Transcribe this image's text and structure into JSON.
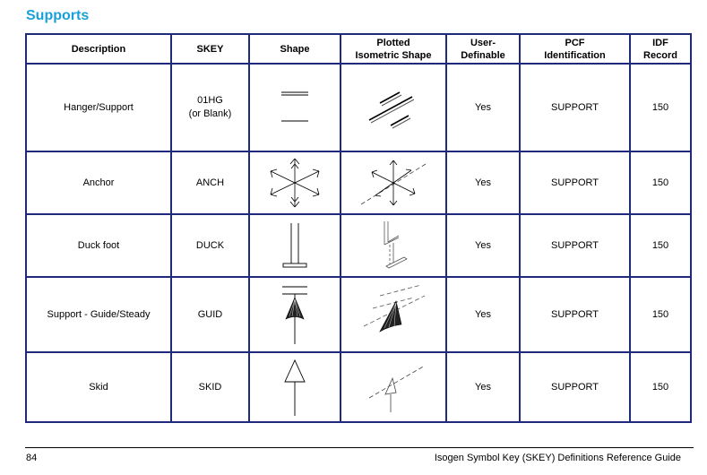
{
  "section_title": "Supports",
  "columns": [
    {
      "line1": "Description",
      "line2": ""
    },
    {
      "line1": "SKEY",
      "line2": ""
    },
    {
      "line1": "Shape",
      "line2": ""
    },
    {
      "line1": "Plotted",
      "line2": "Isometric Shape"
    },
    {
      "line1": "User-",
      "line2": "Definable"
    },
    {
      "line1": "PCF",
      "line2": "Identification"
    },
    {
      "line1": "IDF",
      "line2": "Record"
    }
  ],
  "rows": [
    {
      "description": "Hanger/Support",
      "skey": "01HG",
      "skey_note": "(or Blank)",
      "shape_icon": "hanger-support-icon",
      "user_definable": "Yes",
      "pcf_identification": "SUPPORT",
      "idf_record": "150"
    },
    {
      "description": "Anchor",
      "skey": "ANCH",
      "skey_note": "",
      "shape_icon": "anchor-icon",
      "user_definable": "Yes",
      "pcf_identification": "SUPPORT",
      "idf_record": "150"
    },
    {
      "description": "Duck foot",
      "skey": "DUCK",
      "skey_note": "",
      "shape_icon": "duck-foot-icon",
      "user_definable": "Yes",
      "pcf_identification": "SUPPORT",
      "idf_record": "150"
    },
    {
      "description": "Support - Guide/Steady",
      "skey": "GUID",
      "skey_note": "",
      "shape_icon": "guide-steady-icon",
      "user_definable": "Yes",
      "pcf_identification": "SUPPORT",
      "idf_record": "150"
    },
    {
      "description": "Skid",
      "skey": "SKID",
      "skey_note": "",
      "shape_icon": "skid-icon",
      "user_definable": "Yes",
      "pcf_identification": "SUPPORT",
      "idf_record": "150"
    }
  ],
  "footer": {
    "page_number": "84",
    "document_title": "Isogen Symbol Key (SKEY) Definitions Reference Guide"
  }
}
